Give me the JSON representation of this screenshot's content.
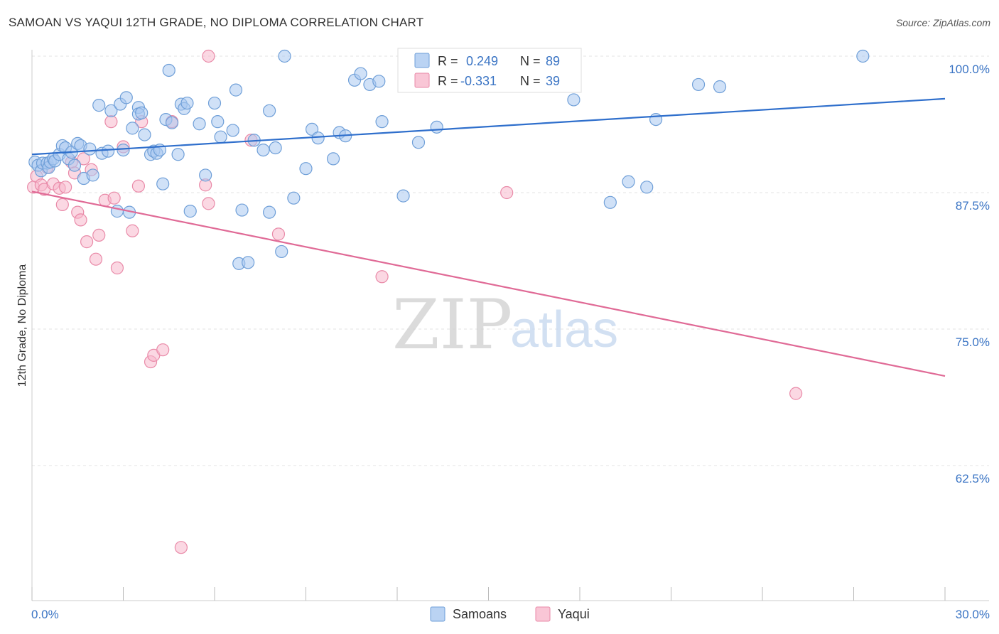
{
  "title": "SAMOAN VS YAQUI 12TH GRADE, NO DIPLOMA CORRELATION CHART",
  "source": "Source: ZipAtlas.com",
  "watermark": {
    "zip": "ZIP",
    "atlas": "atlas"
  },
  "colors": {
    "samoans_fill": "#a9c8f0",
    "samoans_stroke": "#6f9fd8",
    "samoans_line": "#2f6fcc",
    "yaqui_fill": "#f7b8cc",
    "yaqui_stroke": "#e98aa8",
    "yaqui_line": "#e06a96",
    "axis_label": "#3a74c4",
    "grid": "#e3e3e3"
  },
  "legend": {
    "r_label": "R =",
    "n_label": "N =",
    "samoans": {
      "r": "0.249",
      "n": "89"
    },
    "yaqui": {
      "r": "-0.331",
      "n": "39"
    }
  },
  "bottom_legend": [
    "Samoans",
    "Yaqui"
  ],
  "chart_data": {
    "type": "scatter",
    "title": "SAMOAN VS YAQUI 12TH GRADE, NO DIPLOMA CORRELATION CHART",
    "xlabel": "",
    "ylabel": "12th Grade, No Diploma",
    "xlim": [
      0,
      30
    ],
    "ylim": [
      50,
      101
    ],
    "x_tick_labels": [
      "0.0%",
      "30.0%"
    ],
    "y_ticks": [
      62.5,
      75.0,
      87.5,
      100.0
    ],
    "y_tick_labels": [
      "62.5%",
      "75.0%",
      "87.5%",
      "100.0%"
    ],
    "grid": true,
    "series": [
      {
        "name": "Samoans",
        "trend": {
          "x": [
            0,
            30
          ],
          "y": [
            91.0,
            96.1
          ]
        },
        "points": [
          [
            0.1,
            90.3
          ],
          [
            0.2,
            90.0
          ],
          [
            0.3,
            89.5
          ],
          [
            0.35,
            90.2
          ],
          [
            0.5,
            90.2
          ],
          [
            0.55,
            89.8
          ],
          [
            0.6,
            90.3
          ],
          [
            0.7,
            90.6
          ],
          [
            0.75,
            90.4
          ],
          [
            0.9,
            91.0
          ],
          [
            1.0,
            91.8
          ],
          [
            1.1,
            91.6
          ],
          [
            1.2,
            90.6
          ],
          [
            1.3,
            91.2
          ],
          [
            1.4,
            90.0
          ],
          [
            1.5,
            92.0
          ],
          [
            1.6,
            91.8
          ],
          [
            1.7,
            88.8
          ],
          [
            1.9,
            91.5
          ],
          [
            2.0,
            89.1
          ],
          [
            2.3,
            91.1
          ],
          [
            2.2,
            95.5
          ],
          [
            2.5,
            91.3
          ],
          [
            2.6,
            95.0
          ],
          [
            2.8,
            85.8
          ],
          [
            2.9,
            95.6
          ],
          [
            3.0,
            91.4
          ],
          [
            3.1,
            96.2
          ],
          [
            3.2,
            85.7
          ],
          [
            3.3,
            93.4
          ],
          [
            3.5,
            95.3
          ],
          [
            3.5,
            94.7
          ],
          [
            3.6,
            94.8
          ],
          [
            3.7,
            92.8
          ],
          [
            3.9,
            91.0
          ],
          [
            4.0,
            91.3
          ],
          [
            4.1,
            91.1
          ],
          [
            4.2,
            91.4
          ],
          [
            4.3,
            88.3
          ],
          [
            4.4,
            94.2
          ],
          [
            4.5,
            98.7
          ],
          [
            4.6,
            93.9
          ],
          [
            4.8,
            91.0
          ],
          [
            4.9,
            95.6
          ],
          [
            5.0,
            95.2
          ],
          [
            5.1,
            95.7
          ],
          [
            5.2,
            85.8
          ],
          [
            5.5,
            93.8
          ],
          [
            5.7,
            89.1
          ],
          [
            6.0,
            95.7
          ],
          [
            6.1,
            94.0
          ],
          [
            6.2,
            92.6
          ],
          [
            6.6,
            93.2
          ],
          [
            6.7,
            96.9
          ],
          [
            6.9,
            85.9
          ],
          [
            6.8,
            81.0
          ],
          [
            7.1,
            81.1
          ],
          [
            7.3,
            92.3
          ],
          [
            7.6,
            91.4
          ],
          [
            7.8,
            95.0
          ],
          [
            7.8,
            85.7
          ],
          [
            8.0,
            91.6
          ],
          [
            8.2,
            82.1
          ],
          [
            8.3,
            100.0
          ],
          [
            8.6,
            87.0
          ],
          [
            9.0,
            89.7
          ],
          [
            9.2,
            93.3
          ],
          [
            9.4,
            92.5
          ],
          [
            9.9,
            90.6
          ],
          [
            10.1,
            93.0
          ],
          [
            10.3,
            92.7
          ],
          [
            10.6,
            97.8
          ],
          [
            10.8,
            98.4
          ],
          [
            11.1,
            97.4
          ],
          [
            11.4,
            97.7
          ],
          [
            11.5,
            94.0
          ],
          [
            12.2,
            87.2
          ],
          [
            12.7,
            92.1
          ],
          [
            13.3,
            93.5
          ],
          [
            14.0,
            98.1
          ],
          [
            15.0,
            100.0
          ],
          [
            17.8,
            96.0
          ],
          [
            19.0,
            86.6
          ],
          [
            19.6,
            88.5
          ],
          [
            20.2,
            88.0
          ],
          [
            20.5,
            94.2
          ],
          [
            21.9,
            97.4
          ],
          [
            22.6,
            97.2
          ],
          [
            27.3,
            100.0
          ]
        ]
      },
      {
        "name": "Yaqui",
        "trend": {
          "x": [
            0,
            30
          ],
          "y": [
            87.6,
            70.7
          ]
        },
        "points": [
          [
            0.05,
            88.0
          ],
          [
            0.15,
            89.0
          ],
          [
            0.3,
            88.2
          ],
          [
            0.4,
            87.8
          ],
          [
            0.5,
            89.8
          ],
          [
            0.7,
            88.3
          ],
          [
            0.9,
            87.9
          ],
          [
            1.0,
            86.4
          ],
          [
            1.1,
            88.0
          ],
          [
            1.3,
            90.3
          ],
          [
            1.4,
            89.3
          ],
          [
            1.5,
            85.7
          ],
          [
            1.6,
            85.0
          ],
          [
            1.7,
            90.6
          ],
          [
            1.8,
            83.0
          ],
          [
            1.95,
            89.6
          ],
          [
            2.1,
            81.4
          ],
          [
            2.2,
            83.6
          ],
          [
            2.4,
            86.8
          ],
          [
            2.6,
            94.0
          ],
          [
            2.7,
            87.0
          ],
          [
            2.8,
            80.6
          ],
          [
            3.0,
            91.7
          ],
          [
            3.3,
            84.0
          ],
          [
            3.5,
            88.1
          ],
          [
            3.6,
            94.0
          ],
          [
            3.9,
            72.0
          ],
          [
            4.0,
            72.6
          ],
          [
            4.3,
            73.1
          ],
          [
            4.6,
            94.0
          ],
          [
            4.9,
            55.0
          ],
          [
            5.7,
            88.2
          ],
          [
            5.8,
            86.5
          ],
          [
            5.8,
            100.0
          ],
          [
            7.2,
            92.3
          ],
          [
            8.1,
            83.7
          ],
          [
            11.5,
            79.8
          ],
          [
            15.6,
            87.5
          ],
          [
            25.1,
            69.1
          ]
        ]
      }
    ]
  }
}
